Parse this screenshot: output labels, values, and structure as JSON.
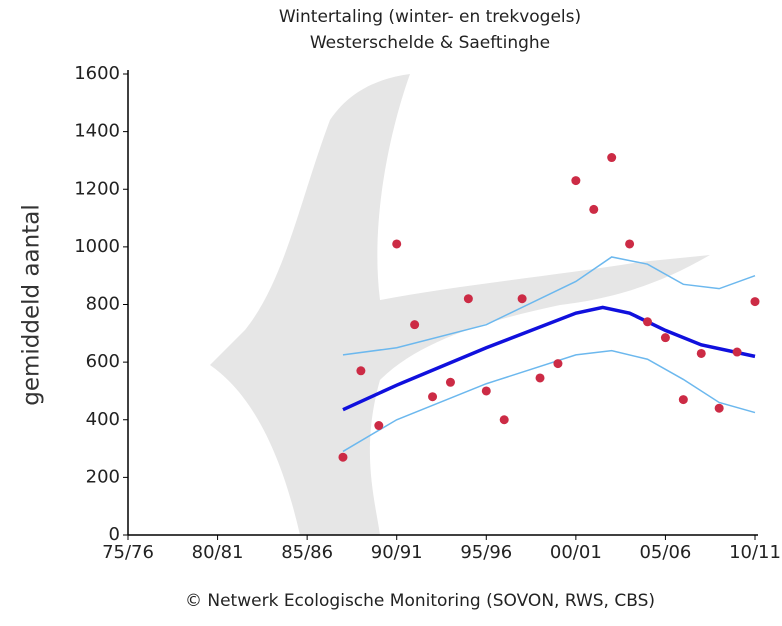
{
  "chart_data": {
    "type": "scatter",
    "title": "Wintertaling (winter- en trekvogels)",
    "subtitle": "Westerschelde & Saeftinghe",
    "ylabel": "gemiddeld aantal",
    "footer": "© Netwerk Ecologische Monitoring (SOVON, RWS, CBS)",
    "xlim": [
      1975,
      2010
    ],
    "xticks": [
      {
        "value": 1975,
        "label": "75/76"
      },
      {
        "value": 1980,
        "label": "80/81"
      },
      {
        "value": 1985,
        "label": "85/86"
      },
      {
        "value": 1990,
        "label": "90/91"
      },
      {
        "value": 1995,
        "label": "95/96"
      },
      {
        "value": 2000,
        "label": "00/01"
      },
      {
        "value": 2005,
        "label": "05/06"
      },
      {
        "value": 2010,
        "label": "10/11"
      }
    ],
    "ylim": [
      0,
      1600
    ],
    "yticks": [
      0,
      200,
      400,
      600,
      800,
      1000,
      1200,
      1400,
      1600
    ],
    "series": [
      {
        "style": "points",
        "color": "#cc2b45",
        "x": [
          1987,
          1988,
          1989,
          1990,
          1991,
          1992,
          1993,
          1994,
          1995,
          1996,
          1997,
          1998,
          1999,
          2000,
          2001,
          2002,
          2003,
          2004,
          2005,
          2006,
          2007,
          2008,
          2009,
          2010
        ],
        "values": [
          270,
          570,
          380,
          1010,
          730,
          480,
          530,
          820,
          500,
          400,
          820,
          545,
          595,
          1230,
          1130,
          1310,
          1010,
          740,
          685,
          470,
          630,
          440,
          635,
          810
        ]
      },
      {
        "style": "line",
        "color": "#6cb8ee",
        "width": 1.5,
        "x": [
          1987,
          1990,
          1995,
          2000,
          2002,
          2004,
          2006,
          2008,
          2010
        ],
        "values": [
          625,
          650,
          730,
          880,
          965,
          940,
          870,
          855,
          900
        ]
      },
      {
        "style": "line",
        "color": "#1010dd",
        "width": 3.5,
        "x": [
          1987,
          1990,
          1995,
          2000,
          2001.5,
          2003,
          2005,
          2007,
          2010
        ],
        "values": [
          435,
          520,
          650,
          770,
          790,
          770,
          710,
          660,
          620
        ]
      },
      {
        "style": "line",
        "color": "#6cb8ee",
        "width": 1.5,
        "x": [
          1987,
          1990,
          1995,
          2000,
          2002,
          2004,
          2006,
          2008,
          2010
        ],
        "values": [
          290,
          400,
          525,
          625,
          640,
          610,
          540,
          460,
          425
        ]
      }
    ]
  }
}
